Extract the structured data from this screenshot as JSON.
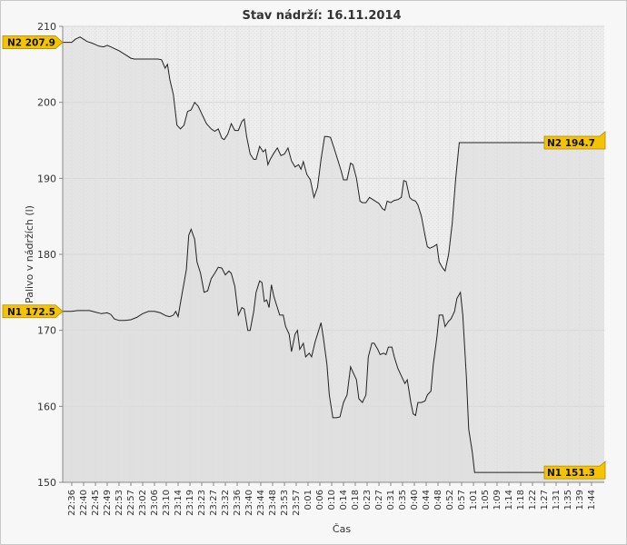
{
  "chart_data": {
    "type": "area",
    "title": "Stav nádrží: 16.11.2014",
    "xlabel": "Čas",
    "ylabel": "Palivo v nádržích (l)",
    "ylim": [
      150,
      210
    ],
    "yticks": [
      150,
      160,
      170,
      180,
      190,
      200,
      210
    ],
    "grid": true,
    "colors": {
      "line": "#222222",
      "fill": "#dcdcdc",
      "flag": "#f5c400",
      "plot_bg": "#ededed"
    },
    "categories": [
      "22:36",
      "22:40",
      "22:45",
      "22:49",
      "22:53",
      "22:57",
      "23:02",
      "23:06",
      "23:10",
      "23:14",
      "23:19",
      "23:23",
      "23:27",
      "23:32",
      "23:36",
      "23:40",
      "23:44",
      "23:48",
      "23:53",
      "23:57",
      "0:01",
      "0:06",
      "0:10",
      "0:14",
      "0:18",
      "0:23",
      "0:27",
      "0:31",
      "0:35",
      "0:40",
      "0:44",
      "0:48",
      "0:52",
      "0:57",
      "1:01",
      "1:05",
      "1:09",
      "1:14",
      "1:18",
      "1:22",
      "1:27",
      "1:31",
      "1:35",
      "1:39",
      "1:44"
    ],
    "series": [
      {
        "name": "N2",
        "label": "N2 207.9",
        "end_label": "N2 194.7",
        "values": [
          [
            0,
            207.9
          ],
          [
            0.3,
            208.3
          ],
          [
            0.7,
            208.6
          ],
          [
            1.0,
            208.3
          ],
          [
            1.3,
            208.0
          ],
          [
            1.7,
            207.8
          ],
          [
            2.0,
            207.6
          ],
          [
            2.3,
            207.4
          ],
          [
            2.7,
            207.3
          ],
          [
            3.0,
            207.5
          ],
          [
            3.3,
            207.3
          ],
          [
            3.7,
            207.0
          ],
          [
            4.0,
            206.8
          ],
          [
            4.3,
            206.5
          ],
          [
            4.7,
            206.1
          ],
          [
            5.0,
            205.8
          ],
          [
            5.3,
            205.7
          ],
          [
            5.7,
            205.7
          ],
          [
            6.0,
            205.7
          ],
          [
            6.3,
            205.7
          ],
          [
            6.7,
            205.7
          ],
          [
            7.0,
            205.7
          ],
          [
            7.3,
            205.7
          ],
          [
            7.6,
            205.6
          ],
          [
            7.9,
            204.5
          ],
          [
            8.1,
            205.0
          ],
          [
            8.3,
            203.0
          ],
          [
            8.6,
            201.0
          ],
          [
            8.9,
            197.0
          ],
          [
            9.2,
            196.5
          ],
          [
            9.5,
            197.0
          ],
          [
            9.8,
            198.8
          ],
          [
            10.1,
            199.0
          ],
          [
            10.4,
            200.0
          ],
          [
            10.7,
            199.5
          ],
          [
            11.0,
            198.5
          ],
          [
            11.4,
            197.2
          ],
          [
            11.8,
            196.5
          ],
          [
            12.1,
            196.2
          ],
          [
            12.4,
            196.5
          ],
          [
            12.7,
            195.3
          ],
          [
            12.9,
            195.1
          ],
          [
            13.2,
            195.8
          ],
          [
            13.5,
            197.2
          ],
          [
            13.8,
            196.3
          ],
          [
            14.1,
            196.3
          ],
          [
            14.4,
            197.5
          ],
          [
            14.6,
            197.8
          ],
          [
            14.8,
            195.5
          ],
          [
            15.1,
            193.2
          ],
          [
            15.4,
            192.5
          ],
          [
            15.6,
            192.5
          ],
          [
            15.9,
            194.2
          ],
          [
            16.2,
            193.5
          ],
          [
            16.4,
            193.8
          ],
          [
            16.6,
            191.8
          ],
          [
            16.8,
            192.5
          ],
          [
            17.1,
            193.3
          ],
          [
            17.4,
            194.0
          ],
          [
            17.7,
            193.0
          ],
          [
            18.0,
            193.2
          ],
          [
            18.3,
            194.0
          ],
          [
            18.6,
            192.3
          ],
          [
            18.9,
            191.5
          ],
          [
            19.2,
            191.8
          ],
          [
            19.4,
            191.2
          ],
          [
            19.6,
            192.2
          ],
          [
            19.9,
            190.5
          ],
          [
            20.2,
            189.8
          ],
          [
            20.5,
            187.5
          ],
          [
            20.8,
            188.8
          ],
          [
            21.1,
            192.5
          ],
          [
            21.4,
            195.5
          ],
          [
            21.6,
            195.5
          ],
          [
            21.9,
            195.4
          ],
          [
            22.2,
            194.0
          ],
          [
            22.5,
            192.5
          ],
          [
            22.8,
            191.0
          ],
          [
            23.0,
            189.8
          ],
          [
            23.3,
            189.8
          ],
          [
            23.6,
            192.0
          ],
          [
            23.8,
            191.8
          ],
          [
            24.1,
            190.0
          ],
          [
            24.4,
            187.0
          ],
          [
            24.6,
            186.8
          ],
          [
            24.9,
            186.8
          ],
          [
            25.2,
            187.5
          ],
          [
            25.5,
            187.2
          ],
          [
            25.8,
            186.9
          ],
          [
            26.0,
            186.7
          ],
          [
            26.3,
            186.0
          ],
          [
            26.5,
            185.8
          ],
          [
            26.7,
            187.0
          ],
          [
            27.0,
            186.8
          ],
          [
            27.3,
            187.1
          ],
          [
            27.6,
            187.2
          ],
          [
            27.9,
            187.5
          ],
          [
            28.1,
            189.7
          ],
          [
            28.3,
            189.6
          ],
          [
            28.6,
            187.5
          ],
          [
            28.8,
            187.2
          ],
          [
            29.1,
            187.0
          ],
          [
            29.3,
            186.5
          ],
          [
            29.6,
            185.0
          ],
          [
            29.9,
            182.5
          ],
          [
            30.1,
            181.0
          ],
          [
            30.3,
            180.8
          ],
          [
            30.6,
            181.0
          ],
          [
            30.9,
            181.3
          ],
          [
            31.1,
            179.0
          ],
          [
            31.4,
            178.2
          ],
          [
            31.6,
            177.8
          ],
          [
            31.9,
            180.0
          ],
          [
            32.2,
            184.0
          ],
          [
            32.5,
            190.0
          ],
          [
            32.8,
            194.7
          ],
          [
            33.1,
            194.7
          ],
          [
            34.0,
            194.7
          ],
          [
            35.0,
            194.7
          ],
          [
            36.0,
            194.7
          ],
          [
            37.0,
            194.7
          ],
          [
            38.0,
            194.7
          ],
          [
            39.0,
            194.7
          ],
          [
            40.0,
            194.7
          ],
          [
            41.0,
            194.7
          ],
          [
            42.0,
            194.7
          ],
          [
            43.0,
            194.7
          ],
          [
            44.0,
            194.7
          ]
        ]
      },
      {
        "name": "N1",
        "label": "N1 172.5",
        "end_label": "N1 151.3",
        "values": [
          [
            0,
            172.5
          ],
          [
            0.5,
            172.6
          ],
          [
            1.0,
            172.6
          ],
          [
            1.5,
            172.6
          ],
          [
            2.0,
            172.4
          ],
          [
            2.5,
            172.2
          ],
          [
            3.0,
            172.3
          ],
          [
            3.3,
            172.1
          ],
          [
            3.6,
            171.5
          ],
          [
            4.0,
            171.3
          ],
          [
            4.5,
            171.3
          ],
          [
            5.0,
            171.4
          ],
          [
            5.5,
            171.7
          ],
          [
            6.0,
            172.2
          ],
          [
            6.5,
            172.5
          ],
          [
            7.0,
            172.5
          ],
          [
            7.5,
            172.3
          ],
          [
            8.0,
            171.9
          ],
          [
            8.3,
            171.8
          ],
          [
            8.6,
            172.0
          ],
          [
            8.8,
            172.5
          ],
          [
            9.0,
            171.8
          ],
          [
            9.3,
            174.5
          ],
          [
            9.7,
            178.0
          ],
          [
            9.9,
            182.5
          ],
          [
            10.1,
            183.3
          ],
          [
            10.4,
            182.0
          ],
          [
            10.6,
            179.0
          ],
          [
            10.9,
            177.5
          ],
          [
            11.2,
            175.0
          ],
          [
            11.5,
            175.2
          ],
          [
            11.8,
            176.8
          ],
          [
            12.1,
            177.5
          ],
          [
            12.4,
            178.3
          ],
          [
            12.7,
            178.2
          ],
          [
            13.0,
            177.3
          ],
          [
            13.3,
            177.8
          ],
          [
            13.5,
            177.5
          ],
          [
            13.8,
            175.8
          ],
          [
            14.1,
            172.0
          ],
          [
            14.4,
            173.0
          ],
          [
            14.6,
            172.8
          ],
          [
            14.9,
            170.0
          ],
          [
            15.1,
            170.0
          ],
          [
            15.4,
            172.5
          ],
          [
            15.6,
            175.0
          ],
          [
            15.9,
            176.5
          ],
          [
            16.1,
            176.3
          ],
          [
            16.3,
            173.8
          ],
          [
            16.5,
            174.0
          ],
          [
            16.7,
            173.0
          ],
          [
            16.9,
            176.0
          ],
          [
            17.1,
            174.5
          ],
          [
            17.3,
            173.5
          ],
          [
            17.6,
            172.0
          ],
          [
            17.9,
            172.0
          ],
          [
            18.1,
            170.5
          ],
          [
            18.4,
            169.5
          ],
          [
            18.6,
            167.2
          ],
          [
            18.9,
            169.5
          ],
          [
            19.1,
            170.0
          ],
          [
            19.3,
            167.5
          ],
          [
            19.6,
            168.3
          ],
          [
            19.8,
            166.5
          ],
          [
            20.1,
            167.0
          ],
          [
            20.3,
            166.5
          ],
          [
            20.6,
            168.5
          ],
          [
            20.9,
            170.0
          ],
          [
            21.1,
            171.0
          ],
          [
            21.3,
            169.0
          ],
          [
            21.6,
            165.5
          ],
          [
            21.8,
            161.5
          ],
          [
            22.1,
            158.5
          ],
          [
            22.4,
            158.5
          ],
          [
            22.7,
            158.6
          ],
          [
            23.0,
            160.5
          ],
          [
            23.3,
            161.5
          ],
          [
            23.6,
            165.2
          ],
          [
            23.8,
            164.5
          ],
          [
            24.1,
            163.5
          ],
          [
            24.3,
            161.0
          ],
          [
            24.6,
            160.5
          ],
          [
            24.9,
            161.5
          ],
          [
            25.1,
            166.5
          ],
          [
            25.4,
            168.3
          ],
          [
            25.6,
            168.3
          ],
          [
            25.9,
            167.5
          ],
          [
            26.1,
            166.8
          ],
          [
            26.4,
            167.0
          ],
          [
            26.6,
            166.8
          ],
          [
            26.8,
            167.8
          ],
          [
            27.1,
            167.8
          ],
          [
            27.3,
            166.5
          ],
          [
            27.6,
            165.0
          ],
          [
            27.9,
            164.0
          ],
          [
            28.2,
            163.0
          ],
          [
            28.4,
            163.5
          ],
          [
            28.7,
            160.5
          ],
          [
            28.9,
            159.0
          ],
          [
            29.1,
            158.8
          ],
          [
            29.3,
            160.5
          ],
          [
            29.6,
            160.5
          ],
          [
            29.9,
            160.7
          ],
          [
            30.1,
            161.5
          ],
          [
            30.4,
            162.0
          ],
          [
            30.6,
            165.5
          ],
          [
            30.9,
            169.0
          ],
          [
            31.1,
            172.0
          ],
          [
            31.4,
            172.0
          ],
          [
            31.6,
            170.5
          ],
          [
            31.9,
            171.2
          ],
          [
            32.1,
            171.5
          ],
          [
            32.4,
            172.5
          ],
          [
            32.6,
            174.2
          ],
          [
            32.9,
            175.0
          ],
          [
            33.1,
            172.0
          ],
          [
            33.4,
            164.0
          ],
          [
            33.6,
            157.0
          ],
          [
            33.9,
            154.0
          ],
          [
            34.1,
            151.3
          ],
          [
            35.0,
            151.3
          ],
          [
            36.0,
            151.3
          ],
          [
            37.0,
            151.3
          ],
          [
            38.0,
            151.3
          ],
          [
            39.0,
            151.3
          ],
          [
            40.0,
            151.3
          ],
          [
            41.0,
            151.3
          ],
          [
            42.0,
            151.3
          ],
          [
            43.0,
            151.3
          ],
          [
            44.0,
            151.3
          ]
        ]
      }
    ]
  }
}
